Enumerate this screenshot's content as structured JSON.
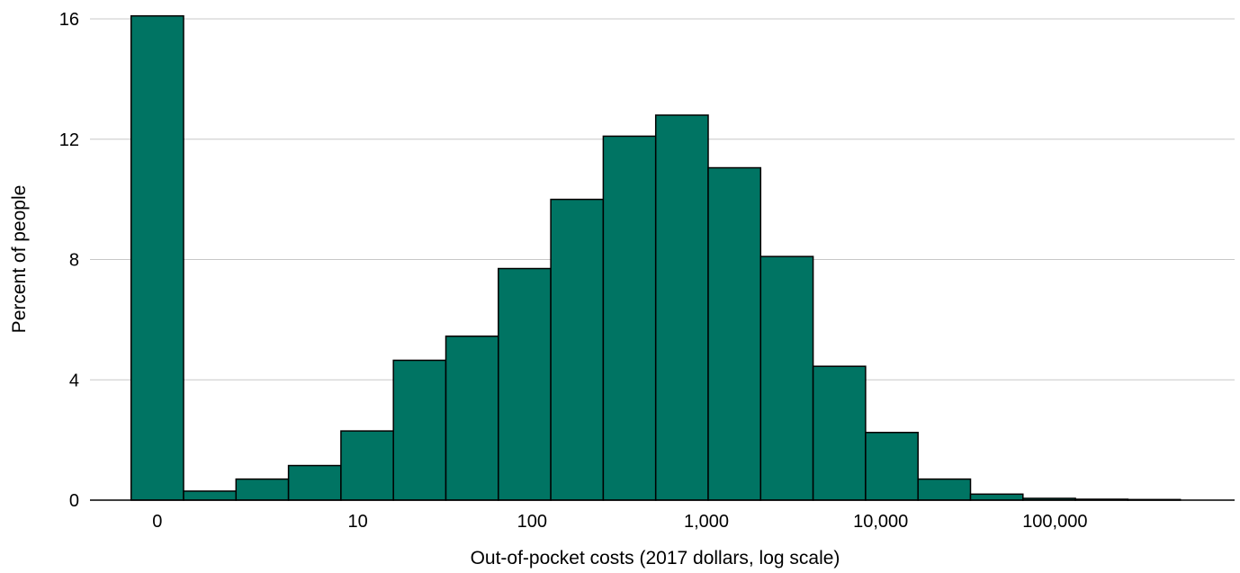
{
  "chart_data": {
    "type": "bar",
    "title": "",
    "xlabel": "Out-of-pocket costs (2017 dollars, log scale)",
    "ylabel": "Percent of people",
    "x_scale": "log",
    "ylim": [
      0,
      16
    ],
    "yticks": [
      0,
      4,
      8,
      12,
      16
    ],
    "grid": true,
    "legend": "none",
    "bar_color": "#007463",
    "bar_edge_color": "#000000",
    "zero_bar": {
      "label": "0",
      "value": 16.1
    },
    "bins": [
      {
        "from": 1,
        "to": 2,
        "value": 0.3
      },
      {
        "from": 2,
        "to": 4,
        "value": 0.7
      },
      {
        "from": 4,
        "to": 8,
        "value": 1.15
      },
      {
        "from": 8,
        "to": 16,
        "value": 2.3
      },
      {
        "from": 16,
        "to": 32,
        "value": 4.65
      },
      {
        "from": 32,
        "to": 64,
        "value": 5.45
      },
      {
        "from": 64,
        "to": 128,
        "value": 7.7
      },
      {
        "from": 128,
        "to": 256,
        "value": 10.0
      },
      {
        "from": 256,
        "to": 512,
        "value": 12.1
      },
      {
        "from": 512,
        "to": 1024,
        "value": 12.8
      },
      {
        "from": 1024,
        "to": 2048,
        "value": 11.05
      },
      {
        "from": 2048,
        "to": 4096,
        "value": 8.1
      },
      {
        "from": 4096,
        "to": 8192,
        "value": 4.45
      },
      {
        "from": 8192,
        "to": 16384,
        "value": 2.25
      },
      {
        "from": 16384,
        "to": 32768,
        "value": 0.7
      },
      {
        "from": 32768,
        "to": 65536,
        "value": 0.2
      },
      {
        "from": 65536,
        "to": 131072,
        "value": 0.06
      },
      {
        "from": 131072,
        "to": 262144,
        "value": 0.03
      },
      {
        "from": 262144,
        "to": 524288,
        "value": 0.02
      }
    ],
    "x_ticks": [
      {
        "label": "10",
        "value": 10
      },
      {
        "label": "100",
        "value": 100
      },
      {
        "label": "1,000",
        "value": 1000
      },
      {
        "label": "10,000",
        "value": 10000
      },
      {
        "label": "100,000",
        "value": 100000
      }
    ],
    "y_tick_labels": [
      "0",
      "4",
      "8",
      "12",
      "16"
    ]
  }
}
